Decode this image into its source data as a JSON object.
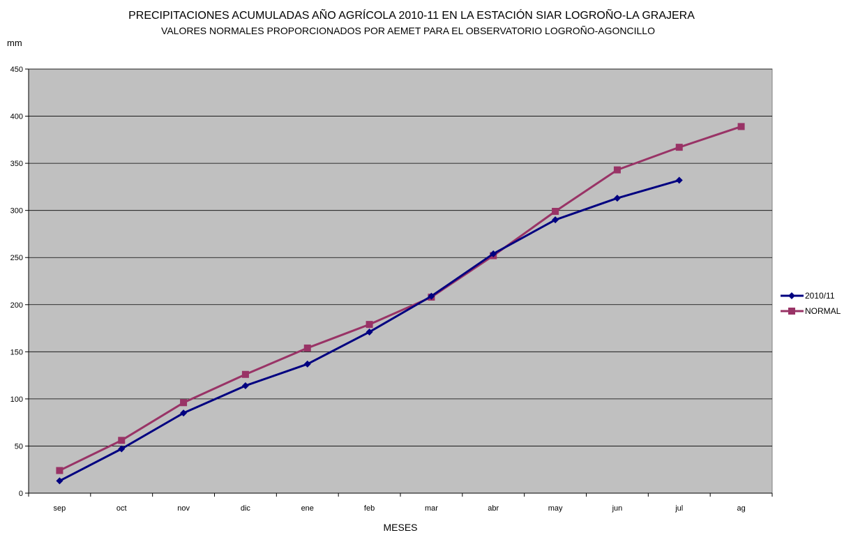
{
  "colors": {
    "plot_background": "#c0c0c0",
    "series_2010": "#000080",
    "series_normal": "#993366"
  },
  "chart_data": {
    "type": "line",
    "title": "PRECIPITACIONES ACUMULADAS AÑO AGRÍCOLA 2010-11 EN LA ESTACIÓN SIAR LOGROÑO-LA GRAJERA",
    "subtitle": "VALORES NORMALES PROPORCIONADOS POR AEMET PARA EL OBSERVATORIO LOGROÑO-AGONCILLO",
    "xlabel": "MESES",
    "ylabel": "mm",
    "categories": [
      "sep",
      "oct",
      "nov",
      "dic",
      "ene",
      "feb",
      "mar",
      "abr",
      "may",
      "jun",
      "jul",
      "ag"
    ],
    "ylim": [
      0,
      450
    ],
    "yticks": [
      0,
      50,
      100,
      150,
      200,
      250,
      300,
      350,
      400,
      450
    ],
    "grid": true,
    "legend_position": "right",
    "series": [
      {
        "name": "2010/11",
        "marker": "diamond",
        "color": "#000080",
        "values": [
          13,
          47,
          85,
          114,
          137,
          171,
          209,
          254,
          290,
          313,
          332,
          null
        ]
      },
      {
        "name": "NORMAL",
        "marker": "square",
        "color": "#993366",
        "values": [
          24,
          56,
          96,
          126,
          154,
          179,
          208,
          252,
          299,
          343,
          367,
          389
        ]
      }
    ]
  }
}
